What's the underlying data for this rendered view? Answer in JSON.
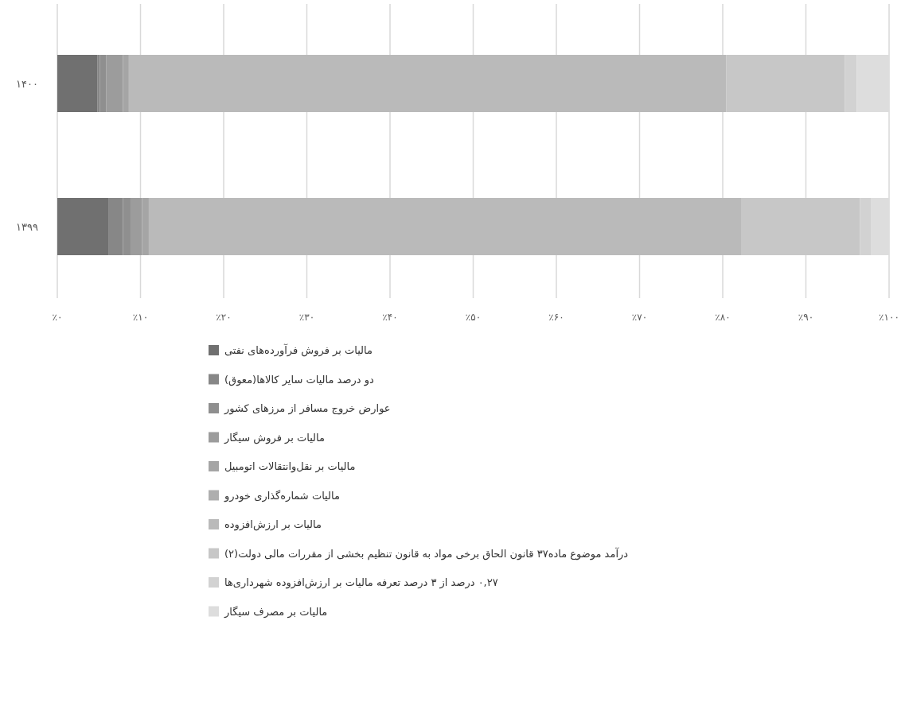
{
  "chart_data": {
    "type": "bar",
    "orientation": "horizontal",
    "stacked": true,
    "categories": [
      "۱۴۰۰",
      "۱۳۹۹"
    ],
    "series": [
      {
        "name": "مالیات بر فروش فرآورده‌های نفتی",
        "color": "#707070",
        "values": [
          4.8,
          6.2
        ]
      },
      {
        "name": "دو درصد مالیات سایر کالاها(معوق)",
        "color": "#878787",
        "values": [
          0.3,
          1.7
        ]
      },
      {
        "name": "عوارض خروج مسافر از مرزهای کشور",
        "color": "#8f8f8f",
        "values": [
          0.8,
          0.9
        ]
      },
      {
        "name": "مالیات بر فروش سیگار",
        "color": "#9c9c9c",
        "values": [
          2.0,
          1.4
        ]
      },
      {
        "name": "مالیات بر نقل‌وانتقالات اتومبیل",
        "color": "#a5a5a5",
        "values": [
          0.7,
          0.8
        ]
      },
      {
        "name": "مالیات شماره‌گذاری خودرو",
        "color": "#aeaeae",
        "values": [
          null,
          null
        ]
      },
      {
        "name": "مالیات بر ارزش‌افزوده",
        "color": "#bababa",
        "values": [
          71.8,
          71.2
        ]
      },
      {
        "name": "درآمد موضوع ماده۳۷ قانون الحاق برخی مواد به قانون تنظیم بخشی از مقررات مالی دولت(۲)",
        "color": "#c7c7c7",
        "values": [
          14.3,
          14.3
        ]
      },
      {
        "name": "۰,۲۷ درصد از ۳ درصد تعرفه مالیات بر ارزش‌افزوده شهرداری‌ها",
        "color": "#d2d2d2",
        "values": [
          1.4,
          1.3
        ]
      },
      {
        "name": "مالیات بر مصرف سیگار",
        "color": "#dddddd",
        "values": [
          3.9,
          2.2
        ]
      }
    ],
    "xlim": [
      0,
      100
    ],
    "xticks": [
      {
        "value": 0,
        "label": "٪۰"
      },
      {
        "value": 10,
        "label": "٪۱۰"
      },
      {
        "value": 20,
        "label": "٪۲۰"
      },
      {
        "value": 30,
        "label": "٪۳۰"
      },
      {
        "value": 40,
        "label": "٪۴۰"
      },
      {
        "value": 50,
        "label": "٪۵۰"
      },
      {
        "value": 60,
        "label": "٪۶۰"
      },
      {
        "value": 70,
        "label": "٪۷۰"
      },
      {
        "value": 80,
        "label": "٪۸۰"
      },
      {
        "value": 90,
        "label": "٪۹۰"
      },
      {
        "value": 100,
        "label": "٪۱۰۰"
      }
    ],
    "grid": "x",
    "legend": "bottom"
  }
}
